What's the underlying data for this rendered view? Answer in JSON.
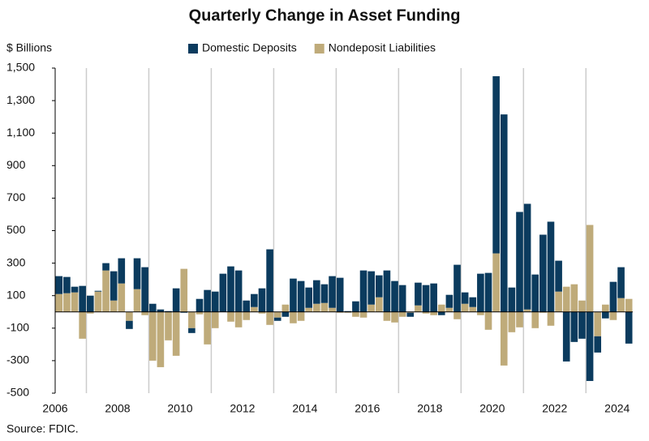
{
  "chart_data": {
    "type": "stacked-bar",
    "title": "Quarterly Change in Asset Funding",
    "y_label": "$ Billions",
    "source": "Source: FDIC.",
    "categories": [
      "2006",
      null,
      null,
      null,
      null,
      null,
      null,
      null,
      "2008",
      null,
      null,
      null,
      null,
      null,
      null,
      null,
      "2010",
      null,
      null,
      null,
      null,
      null,
      null,
      null,
      "2012",
      null,
      null,
      null,
      null,
      null,
      null,
      null,
      "2014",
      null,
      null,
      null,
      null,
      null,
      null,
      null,
      "2016",
      null,
      null,
      null,
      null,
      null,
      null,
      null,
      "2018",
      null,
      null,
      null,
      null,
      null,
      null,
      null,
      "2020",
      null,
      null,
      null,
      null,
      null,
      null,
      null,
      "2022",
      null,
      null,
      null,
      null,
      null,
      null,
      null,
      "2024",
      null
    ],
    "series": [
      {
        "name": "Domestic Deposits",
        "color": "#0b3b5e",
        "values": [
          110,
          100,
          35,
          160,
          100,
          5,
          45,
          180,
          155,
          -50,
          190,
          275,
          50,
          15,
          5,
          145,
          -5,
          -30,
          80,
          135,
          125,
          235,
          280,
          255,
          70,
          80,
          145,
          385,
          -20,
          -30,
          205,
          190,
          125,
          145,
          115,
          195,
          210,
          5,
          65,
          255,
          205,
          135,
          255,
          190,
          165,
          -25,
          140,
          165,
          175,
          -20,
          80,
          290,
          70,
          60,
          235,
          240,
          1090,
          1215,
          150,
          615,
          650,
          230,
          475,
          555,
          190,
          -305,
          -185,
          -165,
          -425,
          -100,
          -40,
          185,
          190,
          -195
        ]
      },
      {
        "name": "Nondeposit Liabilities",
        "color": "#bfab7a",
        "values": [
          110,
          115,
          120,
          -165,
          -10,
          125,
          255,
          70,
          175,
          -55,
          140,
          -20,
          -300,
          -340,
          -175,
          -270,
          265,
          -100,
          -15,
          -200,
          -100,
          0,
          -60,
          -95,
          -50,
          30,
          -10,
          -80,
          -35,
          45,
          -70,
          -55,
          25,
          50,
          55,
          25,
          -5,
          -5,
          -30,
          -35,
          45,
          90,
          -55,
          -65,
          -30,
          -5,
          40,
          -10,
          -20,
          45,
          25,
          -45,
          50,
          30,
          -20,
          -110,
          360,
          -330,
          -125,
          -95,
          15,
          -100,
          -5,
          -85,
          125,
          155,
          170,
          70,
          535,
          -150,
          45,
          -50,
          85,
          80
        ]
      }
    ],
    "ylim": [
      -500,
      1500
    ],
    "yticks": [
      -500,
      -300,
      -100,
      100,
      300,
      500,
      700,
      900,
      {
        "value": 1100,
        "label": "1,100"
      },
      {
        "value": 1300,
        "label": "1,300"
      },
      {
        "value": 1500,
        "label": "1,500"
      }
    ],
    "legend": "top"
  }
}
